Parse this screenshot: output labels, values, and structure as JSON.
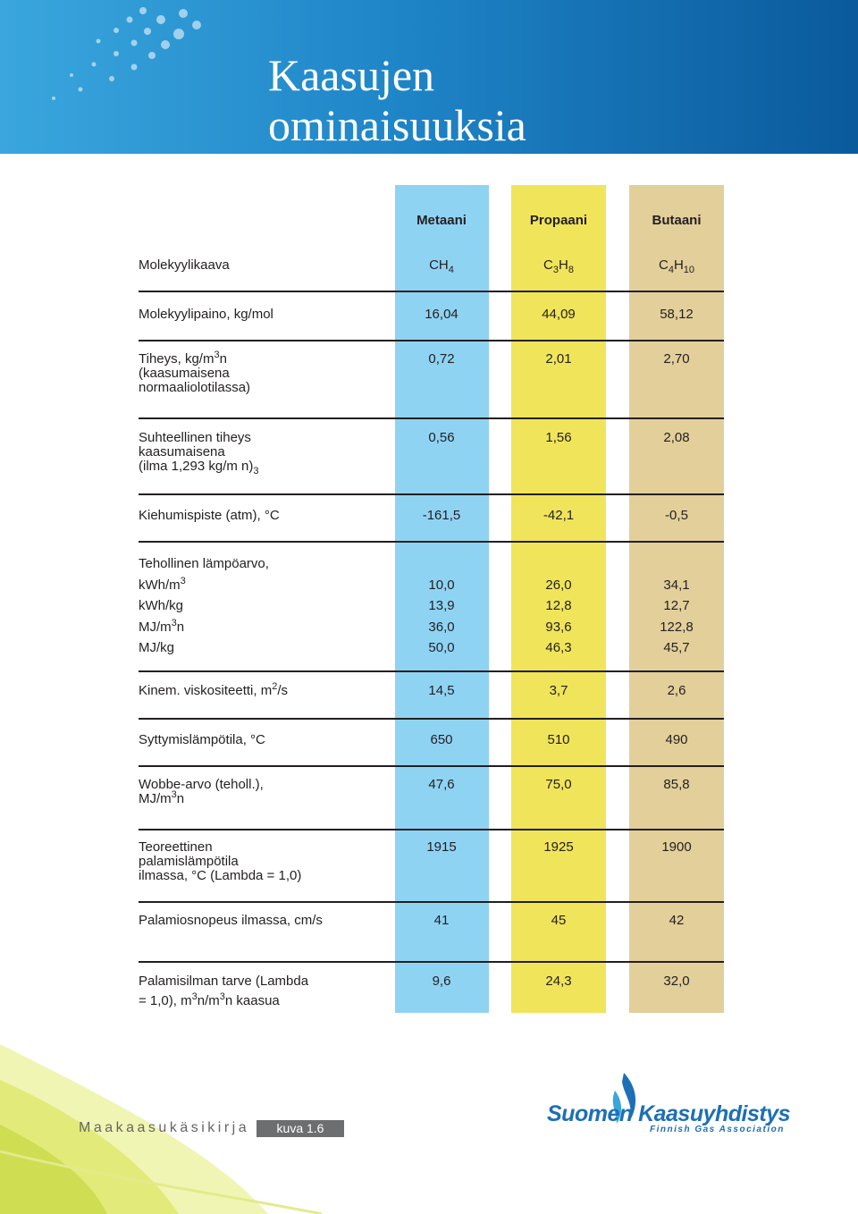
{
  "header": {
    "title": [
      "Kaasujen",
      "ominaisuuksia"
    ]
  },
  "table": {
    "columns": [
      "Metaani",
      "Propaani",
      "Butaani"
    ],
    "rows": [
      {
        "label": [
          [
            "Molekyylikaava"
          ]
        ],
        "values": [
          [
            [
              "CH",
              {
                "sub": "4"
              }
            ]
          ],
          [
            [
              "C",
              {
                "sub": "3"
              },
              "H",
              {
                "sub": "8"
              }
            ]
          ],
          [
            [
              "C",
              {
                "sub": "4"
              },
              "H",
              {
                "sub": "10"
              }
            ]
          ]
        ]
      },
      {
        "label": [
          [
            "Molekyylipaino, kg/mol"
          ]
        ],
        "values": [
          [
            [
              "16,04"
            ]
          ],
          [
            [
              "44,09"
            ]
          ],
          [
            [
              "58,12"
            ]
          ]
        ]
      },
      {
        "label": [
          [
            "Tiheys, kg/m",
            {
              "sup": "3"
            },
            "n"
          ],
          [
            "(kaasumaisena"
          ],
          [
            "normaaliolotilassa)"
          ]
        ],
        "values": [
          [
            [
              "0,72"
            ]
          ],
          [
            [
              "2,01"
            ]
          ],
          [
            [
              "2,70"
            ]
          ]
        ]
      },
      {
        "label": [
          [
            "Suhteellinen tiheys"
          ],
          [
            "kaasumaisena"
          ],
          [
            "(ilma 1,293 kg/m n)",
            {
              "sub": "3"
            }
          ]
        ],
        "values": [
          [
            [
              "0,56"
            ]
          ],
          [
            [
              "1,56"
            ]
          ],
          [
            [
              "2,08"
            ]
          ]
        ]
      },
      {
        "label": [
          [
            "Kiehumispiste (atm), °C"
          ]
        ],
        "values": [
          [
            [
              "-161,5"
            ]
          ],
          [
            [
              "-42,1"
            ]
          ],
          [
            [
              "-0,5"
            ]
          ]
        ]
      },
      {
        "label": [
          [
            "Tehollinen lämpöarvo,"
          ],
          [
            "kWh/m",
            {
              "sup": "3"
            }
          ],
          [
            "kWh/kg"
          ],
          [
            "MJ/m",
            {
              "sup": "3"
            },
            "n"
          ],
          [
            "MJ/kg"
          ]
        ],
        "values": [
          [
            [
              "10,0"
            ],
            [
              "13,9"
            ],
            [
              "36,0"
            ],
            [
              "50,0"
            ]
          ],
          [
            [
              "26,0"
            ],
            [
              "12,8"
            ],
            [
              "93,6"
            ],
            [
              "46,3"
            ]
          ],
          [
            [
              "34,1"
            ],
            [
              "12,7"
            ],
            [
              "122,8"
            ],
            [
              "45,7"
            ]
          ]
        ]
      },
      {
        "label": [
          [
            "Kinem. viskositeetti, m",
            {
              "sup": "2"
            },
            "/s"
          ]
        ],
        "values": [
          [
            [
              "14,5"
            ]
          ],
          [
            [
              "3,7"
            ]
          ],
          [
            [
              "2,6"
            ]
          ]
        ]
      },
      {
        "label": [
          [
            "Syttymislämpötila, °C"
          ]
        ],
        "values": [
          [
            [
              "650"
            ]
          ],
          [
            [
              "510"
            ]
          ],
          [
            [
              "490"
            ]
          ]
        ]
      },
      {
        "label": [
          [
            "Wobbe-arvo (teholl.),"
          ],
          [
            " MJ/m",
            {
              "sup": "3"
            },
            "n"
          ]
        ],
        "values": [
          [
            [
              "47,6"
            ]
          ],
          [
            [
              "75,0"
            ]
          ],
          [
            [
              "85,8"
            ]
          ]
        ]
      },
      {
        "label": [
          [
            "Teoreettinen"
          ],
          [
            "palamislämpötila"
          ],
          [
            "ilmassa, °C (Lambda = 1,0)"
          ]
        ],
        "values": [
          [
            [
              "1915"
            ]
          ],
          [
            [
              "1925"
            ]
          ],
          [
            [
              "1900"
            ]
          ]
        ]
      },
      {
        "label": [
          [
            "Palamiosnopeus ilmassa, cm/s"
          ]
        ],
        "values": [
          [
            [
              "41"
            ]
          ],
          [
            [
              "45"
            ]
          ],
          [
            [
              "42"
            ]
          ]
        ]
      },
      {
        "label": [
          [
            "Palamisilman tarve (Lambda"
          ],
          [
            "= 1,0), m",
            {
              "sup": "3"
            },
            "n/m",
            {
              "sup": "3"
            },
            "n kaasua"
          ]
        ],
        "values": [
          [
            [
              "9,6"
            ]
          ],
          [
            [
              "24,3"
            ]
          ],
          [
            [
              "32,0"
            ]
          ]
        ]
      }
    ]
  },
  "footer": {
    "book": "Maakaasukäsikirja",
    "figure": "kuva 1.6",
    "logo": "Suomen Kaasuyhdistys",
    "logo_sub": "Finnish Gas Association"
  }
}
